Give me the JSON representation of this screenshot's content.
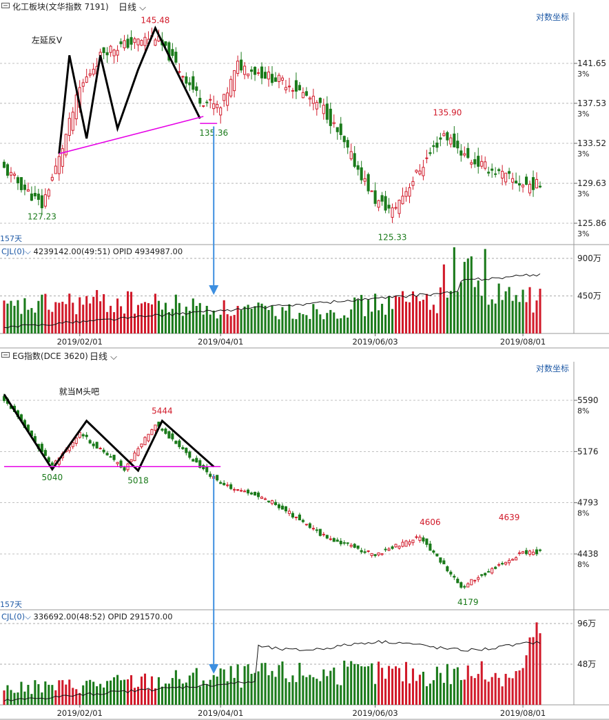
{
  "panels": [
    {
      "title": "化工板块(文华指数 7191)",
      "period": "日线",
      "scale_mode": "对数坐标",
      "days_label": "157天",
      "annotation": "左延反V",
      "price_labels": [
        {
          "text": "145.48",
          "color": "#d11a2a"
        },
        {
          "text": "127.23",
          "color": "#1a7a1a"
        },
        {
          "text": "135.36",
          "color": "#1a7a1a"
        },
        {
          "text": "135.90",
          "color": "#d11a2a"
        },
        {
          "text": "125.33",
          "color": "#1a7a1a"
        }
      ],
      "y_ticks": [
        {
          "value": "141.65",
          "pct": "3%"
        },
        {
          "value": "137.53",
          "pct": "3%"
        },
        {
          "value": "133.52",
          "pct": "3%"
        },
        {
          "value": "129.63",
          "pct": "3%"
        },
        {
          "value": "125.86",
          "pct": "3%"
        }
      ],
      "indicator": {
        "name": "CJL(0)",
        "text": "4239142.00(49:51)  OPID 4934987.00"
      },
      "vol_ticks": [
        "900万",
        "450万"
      ],
      "x_ticks": [
        "2019/02/01",
        "2019/04/01",
        "2019/06/03",
        "2019/08/01"
      ]
    },
    {
      "title": "EG指数(DCE 3620)",
      "period": "日线",
      "scale_mode": "对数坐标",
      "days_label": "157天",
      "annotation": "就当M头吧",
      "price_labels": [
        {
          "text": "5444",
          "color": "#d11a2a"
        },
        {
          "text": "5040",
          "color": "#1a7a1a"
        },
        {
          "text": "5018",
          "color": "#1a7a1a"
        },
        {
          "text": "4606",
          "color": "#d11a2a"
        },
        {
          "text": "4639",
          "color": "#d11a2a"
        },
        {
          "text": "4179",
          "color": "#1a7a1a"
        }
      ],
      "y_ticks": [
        {
          "value": "5590",
          "pct": "8%"
        },
        {
          "value": "5176",
          "pct": ""
        },
        {
          "value": "4793",
          "pct": "8%"
        },
        {
          "value": "4438",
          "pct": "8%"
        }
      ],
      "indicator": {
        "name": "CJL(0)",
        "text": "336692.00(48:52)  OPID 291570.00"
      },
      "vol_ticks": [
        "96万",
        "48万"
      ],
      "x_ticks": [
        "2019/02/01",
        "2019/04/01",
        "2019/06/03",
        "2019/08/01"
      ]
    }
  ],
  "colors": {
    "up": "#d11a2a",
    "down": "#1a7a1a",
    "neckline": "#e600e6",
    "arrow": "#3d8fe0",
    "pattern": "#000000"
  },
  "chart_data": [
    {
      "type": "candlestick",
      "title": "化工板块(文华指数 7191)",
      "period": "日线",
      "scale": "log",
      "y_ticks": [
        141.65,
        137.53,
        133.52,
        129.63,
        125.86
      ],
      "x_ticks": [
        "2019/02/01",
        "2019/04/01",
        "2019/06/03",
        "2019/08/01"
      ],
      "marked_points": [
        {
          "label": "127.23",
          "value": 127.23,
          "kind": "low"
        },
        {
          "label": "145.48",
          "value": 145.48,
          "kind": "high"
        },
        {
          "label": "135.36",
          "value": 135.36,
          "kind": "low"
        },
        {
          "label": "135.90",
          "value": 135.9,
          "kind": "high"
        },
        {
          "label": "125.33",
          "value": 125.33,
          "kind": "low"
        }
      ],
      "close_path": [
        {
          "date": "2019/01/02",
          "close": 131.0
        },
        {
          "date": "2019/01/17",
          "close": 127.5
        },
        {
          "date": "2019/01/24",
          "close": 132.0
        },
        {
          "date": "2019/02/01",
          "close": 139.0
        },
        {
          "date": "2019/02/12",
          "close": 143.0
        },
        {
          "date": "2019/03/05",
          "close": 144.5
        },
        {
          "date": "2019/03/22",
          "close": 138.0
        },
        {
          "date": "2019/04/01",
          "close": 137.0
        },
        {
          "date": "2019/04/08",
          "close": 141.5
        },
        {
          "date": "2019/04/29",
          "close": 139.5
        },
        {
          "date": "2019/05/13",
          "close": 137.0
        },
        {
          "date": "2019/06/03",
          "close": 128.0
        },
        {
          "date": "2019/06/10",
          "close": 127.0
        },
        {
          "date": "2019/07/01",
          "close": 134.5
        },
        {
          "date": "2019/07/10",
          "close": 132.0
        },
        {
          "date": "2019/08/01",
          "close": 129.5
        }
      ],
      "volume_ticks": [
        "900万",
        "450万"
      ],
      "indicator_readout": "CJL(0) 4239142.00(49:51)  OPID 4934987.00"
    },
    {
      "type": "candlestick",
      "title": "EG指数(DCE 3620)",
      "period": "日线",
      "scale": "log",
      "y_ticks": [
        5590,
        5176,
        4793,
        4438
      ],
      "x_ticks": [
        "2019/02/01",
        "2019/04/01",
        "2019/06/03",
        "2019/08/01"
      ],
      "marked_points": [
        {
          "label": "5444",
          "value": 5444,
          "kind": "high"
        },
        {
          "label": "5040",
          "value": 5040,
          "kind": "low"
        },
        {
          "label": "5018",
          "value": 5018,
          "kind": "low"
        },
        {
          "label": "4606",
          "value": 4606,
          "kind": "high"
        },
        {
          "label": "4639",
          "value": 4639,
          "kind": "high"
        },
        {
          "label": "4179",
          "value": 4179,
          "kind": "low"
        }
      ],
      "close_path": [
        {
          "date": "2019/01/02",
          "close": 5600
        },
        {
          "date": "2019/01/22",
          "close": 5060
        },
        {
          "date": "2019/02/01",
          "close": 5320
        },
        {
          "date": "2019/02/20",
          "close": 5040
        },
        {
          "date": "2019/03/05",
          "close": 5400
        },
        {
          "date": "2019/03/22",
          "close": 5060
        },
        {
          "date": "2019/04/01",
          "close": 4930
        },
        {
          "date": "2019/04/22",
          "close": 4800
        },
        {
          "date": "2019/05/13",
          "close": 4560
        },
        {
          "date": "2019/06/03",
          "close": 4430
        },
        {
          "date": "2019/06/20",
          "close": 4560
        },
        {
          "date": "2019/07/08",
          "close": 4220
        },
        {
          "date": "2019/08/01",
          "close": 4450
        }
      ],
      "volume_ticks": [
        "96万",
        "48万"
      ],
      "indicator_readout": "CJL(0) 336692.00(48:52)  OPID 291570.00"
    }
  ]
}
